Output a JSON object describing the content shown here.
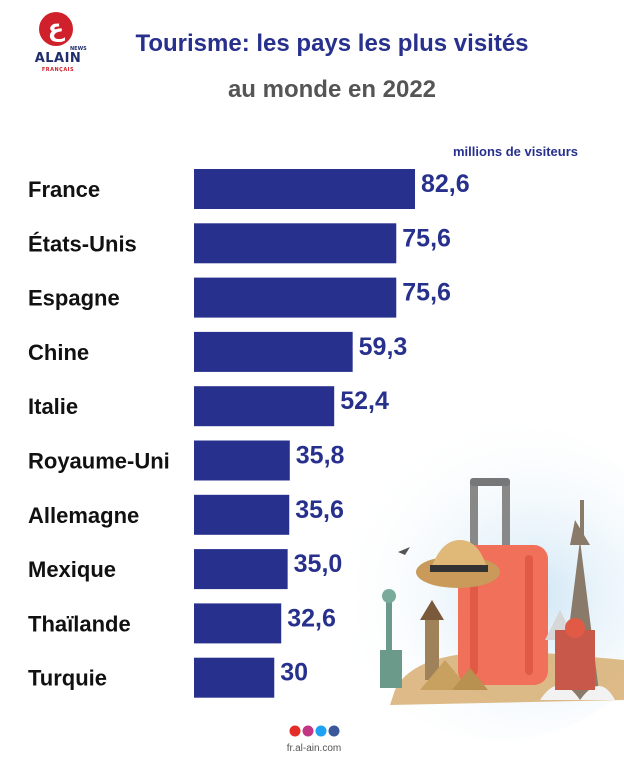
{
  "brand": {
    "logo_letter": "ع",
    "logo_tag": "NEWS",
    "logo_name": "ALAIN",
    "logo_sub": "FRANÇAIS"
  },
  "header": {
    "title_line1": "Tourisme: les pays les plus visités",
    "title_line2": "au monde en 2022",
    "unit": "millions de visiteurs"
  },
  "chart_data": {
    "type": "bar",
    "orientation": "horizontal",
    "title": "Tourisme: les pays les plus visités au monde en 2022",
    "xlabel": "millions de visiteurs",
    "ylabel": "",
    "xlim": [
      0,
      82.6
    ],
    "grid": false,
    "legend": "none",
    "color": "#27308c",
    "categories": [
      "France",
      "États-Unis",
      "Espagne",
      "Chine",
      "Italie",
      "Royaume-Uni",
      "Allemagne",
      "Mexique",
      "Thaïlande",
      "Turquie"
    ],
    "values": [
      82.6,
      75.6,
      75.6,
      59.3,
      52.4,
      35.8,
      35.6,
      35.0,
      32.6,
      30
    ],
    "value_labels": [
      "82,6",
      "75,6",
      "75,6",
      "59,3",
      "52,4",
      "35,8",
      "35,6",
      "35,0",
      "32,6",
      "30"
    ]
  },
  "footer": {
    "icons": [
      "youtube-icon",
      "instagram-icon",
      "twitter-icon",
      "facebook-icon"
    ],
    "icon_colors": [
      "#e52d27",
      "#c13584",
      "#1da1f2",
      "#3b5998"
    ],
    "url": "fr.al-ain.com"
  }
}
